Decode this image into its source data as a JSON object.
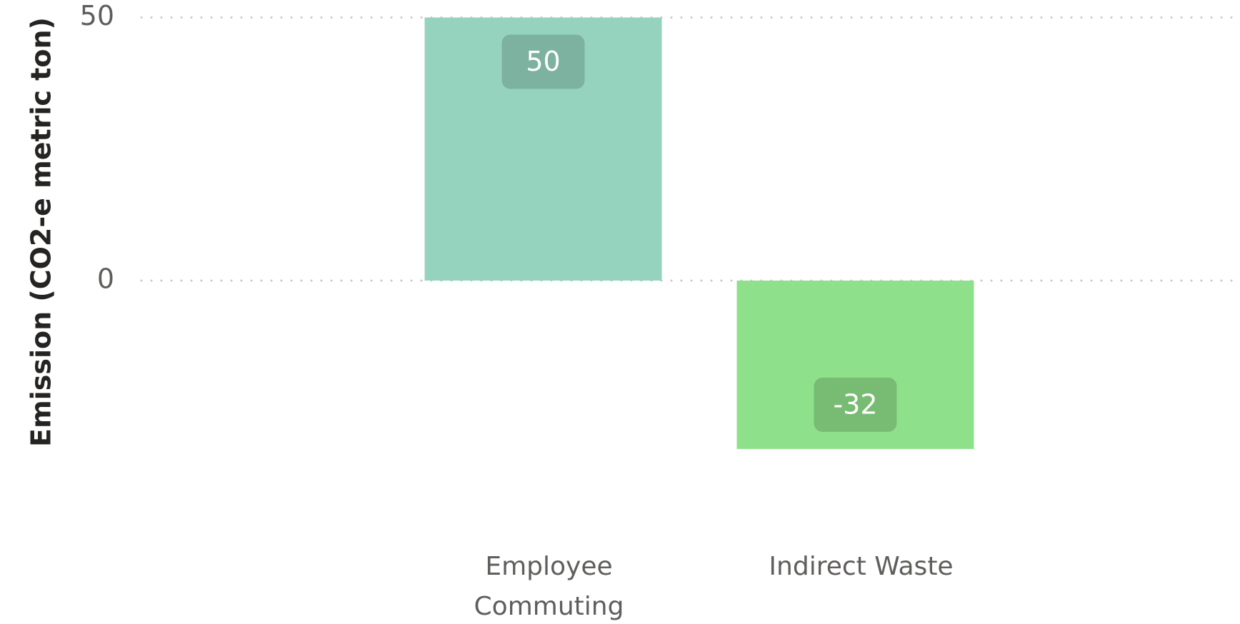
{
  "chart_data": {
    "type": "bar",
    "y_label": "Emission (CO2-e metric ton)",
    "categories": [
      "Employee Commuting",
      "Indirect Waste"
    ],
    "values": [
      50,
      -32
    ],
    "colors": [
      "#95d3bf",
      "#8fe08b"
    ],
    "ylim": [
      -50,
      50
    ],
    "yticks": [
      0,
      50
    ],
    "grid": true
  }
}
